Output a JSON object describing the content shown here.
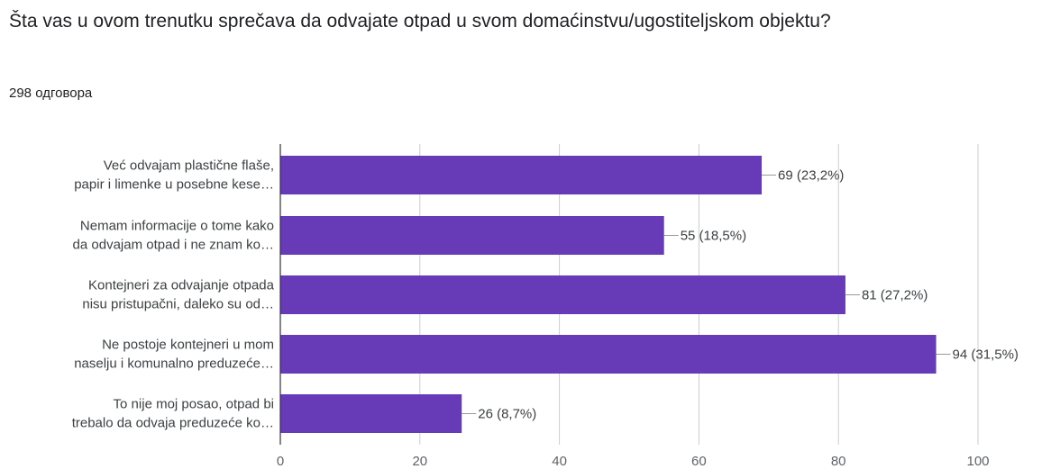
{
  "question": {
    "title": "Šta vas u ovom trenutku sprečava da odvajate otpad u svom domaćinstvu/ugostiteljskom objektu?",
    "response_count": "298 одговора"
  },
  "colors": {
    "bar": "#673ab7",
    "axis": "#333333",
    "grid": "#cccccc",
    "connector": "#999999"
  },
  "chart_data": {
    "type": "bar",
    "orientation": "horizontal",
    "categories": [
      [
        "Već odvajam plastične flaše,",
        "papir i limenke u posebne kese…"
      ],
      [
        "Nemam informacije o tome kako",
        "da odvajam otpad i ne znam ko…"
      ],
      [
        "Kontejneri za odvajanje otpada",
        "nisu pristupačni, daleko su od…"
      ],
      [
        "Ne postoje kontejneri u mom",
        "naselju i komunalno preduzeće…"
      ],
      [
        "To nije moj posao, otpad bi",
        "trebalo da odvaja preduzeće ko…"
      ]
    ],
    "values": [
      69,
      55,
      81,
      94,
      26
    ],
    "data_labels": [
      "69 (23,2%)",
      "55 (18,5%)",
      "81 (27,2%)",
      "94 (31,5%)",
      "26 (8,7%)"
    ],
    "xlim": [
      0,
      100
    ],
    "xticks": [
      0,
      20,
      40,
      60,
      80,
      100
    ],
    "xtick_labels": [
      "0",
      "20",
      "40",
      "60",
      "80",
      "100"
    ],
    "grid": true,
    "legend": "none"
  }
}
